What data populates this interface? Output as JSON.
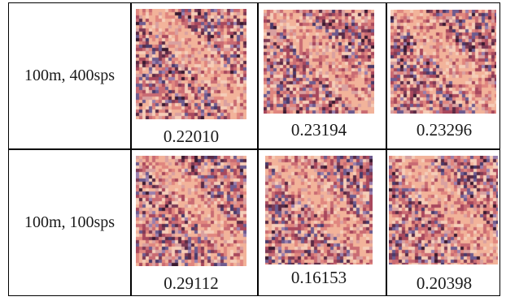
{
  "rows": [
    {
      "label": "100m, 400sps",
      "cells": [
        {
          "value": "0.22010"
        },
        {
          "value": "0.23194"
        },
        {
          "value": "0.23296"
        }
      ]
    },
    {
      "label": "100m, 100sps",
      "cells": [
        {
          "value": "0.29112"
        },
        {
          "value": "0.16153"
        },
        {
          "value": "0.20398"
        }
      ]
    }
  ],
  "palette": [
    "#f2b39a",
    "#e0867f",
    "#c96b73",
    "#a8485d",
    "#7e3a55",
    "#5a2a45",
    "#3a1a30",
    "#6e5b8f",
    "#9a7fae",
    "#d9a0a0",
    "#f5cdb8",
    "#4a3a6a"
  ]
}
